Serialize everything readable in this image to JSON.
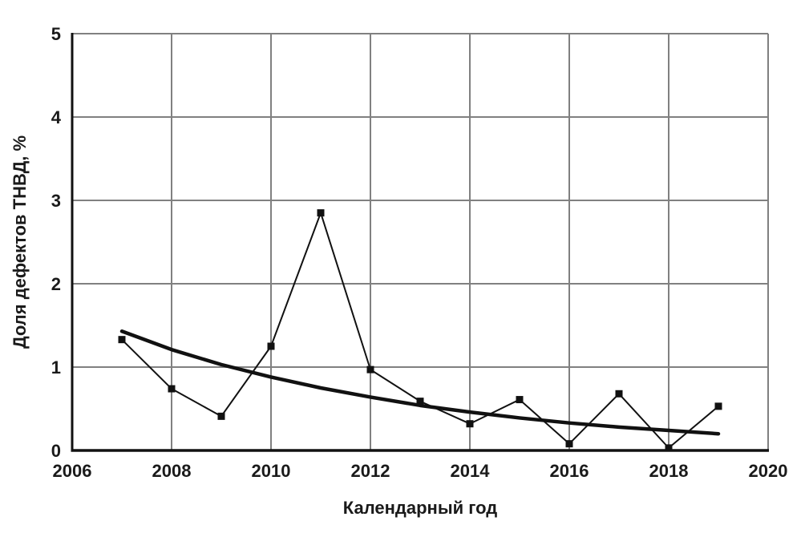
{
  "figure": {
    "background": "#ffffff"
  },
  "chart_data": {
    "type": "line",
    "title": "",
    "xlabel": "Календарный год",
    "ylabel": "Доля дефектов ТНВД, %",
    "xlim": [
      2006,
      2020
    ],
    "ylim": [
      0,
      5
    ],
    "x_ticks": [
      2006,
      2008,
      2010,
      2012,
      2014,
      2016,
      2018,
      2020
    ],
    "y_ticks": [
      0,
      1,
      2,
      3,
      4,
      5
    ],
    "grid": true,
    "legend": "none",
    "x": [
      2007,
      2008,
      2009,
      2010,
      2011,
      2012,
      2013,
      2014,
      2015,
      2016,
      2017,
      2018,
      2019
    ],
    "series": [
      {
        "name": "defect-share",
        "marker": "square",
        "thick": false,
        "values": [
          1.33,
          0.74,
          0.41,
          1.25,
          2.85,
          0.97,
          0.59,
          0.32,
          0.61,
          0.08,
          0.68,
          0.03,
          0.53
        ]
      },
      {
        "name": "trend",
        "marker": "none",
        "thick": true,
        "values": [
          1.43,
          1.21,
          1.03,
          0.88,
          0.75,
          0.64,
          0.54,
          0.46,
          0.39,
          0.33,
          0.28,
          0.24,
          0.2
        ]
      }
    ],
    "colors": {
      "series": "#111111",
      "grid": "#808080",
      "axis": "#111111",
      "text": "#1a1a1a"
    }
  }
}
